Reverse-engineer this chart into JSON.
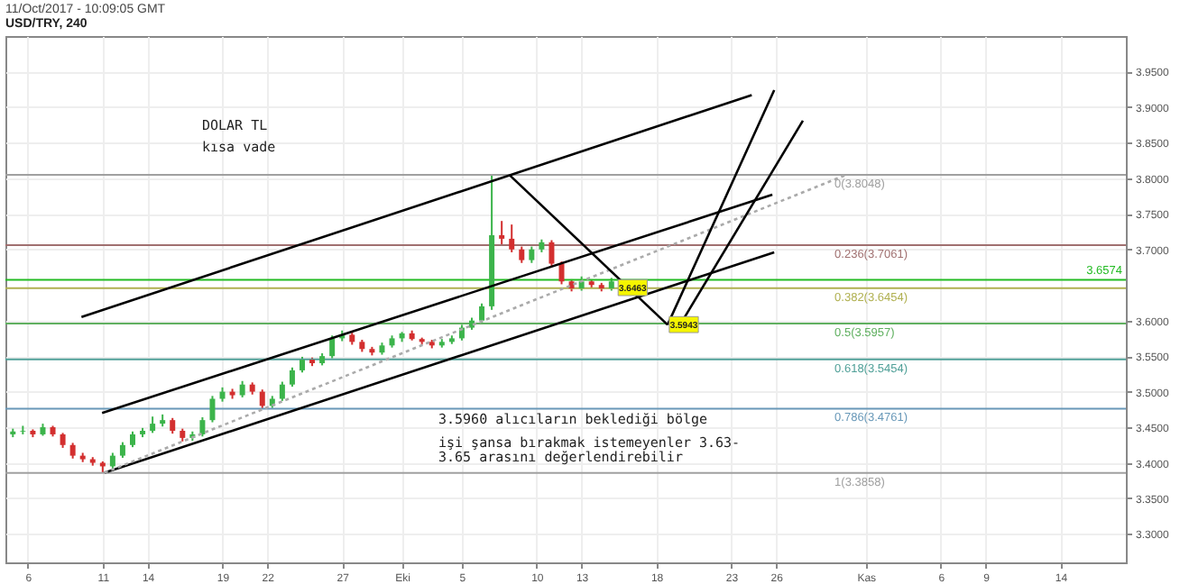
{
  "chart_data": {
    "type": "candlestick",
    "title": "USD/TRY, 240",
    "subtitle": "11/Oct/2017 - 10:09:05 GMT",
    "x": [
      "2017-09-05T00:00",
      "2017-09-05T16:00",
      "2017-09-06T08:00",
      "2017-09-07T00:00",
      "2017-09-07T16:00",
      "2017-09-08T08:00",
      "2017-09-09T00:00",
      "2017-09-09T16:00",
      "2017-09-10T08:00",
      "2017-09-11T00:00",
      "2017-09-11T16:00",
      "2017-09-12T08:00",
      "2017-09-13T00:00",
      "2017-09-13T16:00",
      "2017-09-14T08:00",
      "2017-09-15T00:00",
      "2017-09-15T16:00",
      "2017-09-16T08:00",
      "2017-09-17T00:00",
      "2017-09-17T16:00",
      "2017-09-18T08:00",
      "2017-09-19T00:00",
      "2017-09-19T16:00",
      "2017-09-20T08:00",
      "2017-09-21T00:00",
      "2017-09-21T16:00",
      "2017-09-22T08:00",
      "2017-09-23T00:00",
      "2017-09-23T16:00",
      "2017-09-24T08:00",
      "2017-09-25T00:00",
      "2017-09-25T16:00",
      "2017-09-26T08:00",
      "2017-09-27T00:00",
      "2017-09-27T16:00",
      "2017-09-28T08:00",
      "2017-09-29T00:00",
      "2017-09-29T16:00",
      "2017-09-30T08:00",
      "2017-10-01T00:00",
      "2017-10-01T16:00",
      "2017-10-02T08:00",
      "2017-10-03T00:00",
      "2017-10-03T16:00",
      "2017-10-04T08:00",
      "2017-10-05T00:00",
      "2017-10-05T16:00",
      "2017-10-06T08:00",
      "2017-10-07T00:00",
      "2017-10-07T16:00",
      "2017-10-08T08:00",
      "2017-10-09T00:00",
      "2017-10-09T16:00",
      "2017-10-10T08:00",
      "2017-10-11T00:00",
      "2017-10-11T16:00",
      "2017-10-12T08:00",
      "2017-10-13T00:00",
      "2017-10-13T16:00",
      "2017-10-14T08:00",
      "2017-10-15T00:00"
    ],
    "ohlc": [
      [
        3.44,
        3.448,
        3.436,
        3.444
      ],
      [
        3.444,
        3.452,
        3.44,
        3.445
      ],
      [
        3.445,
        3.447,
        3.436,
        3.44
      ],
      [
        3.44,
        3.455,
        3.438,
        3.45
      ],
      [
        3.45,
        3.452,
        3.437,
        3.44
      ],
      [
        3.44,
        3.442,
        3.421,
        3.425
      ],
      [
        3.425,
        3.428,
        3.406,
        3.41
      ],
      [
        3.41,
        3.414,
        3.401,
        3.405
      ],
      [
        3.405,
        3.408,
        3.396,
        3.4
      ],
      [
        3.4,
        3.402,
        3.386,
        3.395
      ],
      [
        3.395,
        3.414,
        3.392,
        3.41
      ],
      [
        3.41,
        3.429,
        3.407,
        3.425
      ],
      [
        3.425,
        3.444,
        3.422,
        3.44
      ],
      [
        3.44,
        3.449,
        3.436,
        3.445
      ],
      [
        3.445,
        3.465,
        3.442,
        3.455
      ],
      [
        3.455,
        3.468,
        3.451,
        3.46
      ],
      [
        3.46,
        3.463,
        3.441,
        3.445
      ],
      [
        3.445,
        3.448,
        3.43,
        3.435
      ],
      [
        3.435,
        3.444,
        3.431,
        3.44
      ],
      [
        3.44,
        3.464,
        3.437,
        3.46
      ],
      [
        3.46,
        3.494,
        3.457,
        3.49
      ],
      [
        3.49,
        3.506,
        3.486,
        3.5
      ],
      [
        3.5,
        3.504,
        3.49,
        3.495
      ],
      [
        3.495,
        3.515,
        3.492,
        3.51
      ],
      [
        3.51,
        3.513,
        3.496,
        3.5
      ],
      [
        3.5,
        3.503,
        3.476,
        3.48
      ],
      [
        3.48,
        3.494,
        3.477,
        3.49
      ],
      [
        3.49,
        3.514,
        3.487,
        3.51
      ],
      [
        3.51,
        3.534,
        3.507,
        3.53
      ],
      [
        3.53,
        3.549,
        3.527,
        3.545
      ],
      [
        3.545,
        3.548,
        3.536,
        3.54
      ],
      [
        3.54,
        3.554,
        3.537,
        3.55
      ],
      [
        3.55,
        3.579,
        3.547,
        3.575
      ],
      [
        3.575,
        3.586,
        3.571,
        3.58
      ],
      [
        3.58,
        3.583,
        3.566,
        3.57
      ],
      [
        3.57,
        3.573,
        3.556,
        3.56
      ],
      [
        3.56,
        3.563,
        3.551,
        3.555
      ],
      [
        3.555,
        3.569,
        3.552,
        3.565
      ],
      [
        3.565,
        3.579,
        3.562,
        3.575
      ],
      [
        3.575,
        3.584,
        3.57,
        3.582
      ],
      [
        3.582,
        3.586,
        3.572,
        3.574
      ],
      [
        3.574,
        3.576,
        3.566,
        3.57
      ],
      [
        3.57,
        3.573,
        3.561,
        3.565
      ],
      [
        3.565,
        3.574,
        3.562,
        3.57
      ],
      [
        3.57,
        3.579,
        3.567,
        3.575
      ],
      [
        3.575,
        3.594,
        3.572,
        3.59
      ],
      [
        3.59,
        3.604,
        3.587,
        3.6
      ],
      [
        3.6,
        3.624,
        3.597,
        3.62
      ],
      [
        3.62,
        3.805,
        3.615,
        3.72
      ],
      [
        3.72,
        3.74,
        3.705,
        3.715
      ],
      [
        3.715,
        3.735,
        3.696,
        3.7
      ],
      [
        3.7,
        3.704,
        3.681,
        3.685
      ],
      [
        3.685,
        3.704,
        3.681,
        3.7
      ],
      [
        3.7,
        3.714,
        3.696,
        3.71
      ],
      [
        3.71,
        3.713,
        3.676,
        3.68
      ],
      [
        3.68,
        3.683,
        3.651,
        3.655
      ],
      [
        3.655,
        3.658,
        3.641,
        3.645
      ],
      [
        3.645,
        3.662,
        3.642,
        3.655
      ],
      [
        3.655,
        3.658,
        3.646,
        3.65
      ],
      [
        3.65,
        3.653,
        3.641,
        3.645
      ],
      [
        3.645,
        3.66,
        3.642,
        3.655
      ]
    ],
    "series": [
      {
        "type": "line",
        "color": "#000000",
        "x": [
          "2017-09-09T14:00",
          "2017-10-24T09:00"
        ],
        "values": [
          3.605,
          3.917
        ]
      },
      {
        "type": "line",
        "color": "#000000",
        "x": [
          "2017-09-10T23:00",
          "2017-10-25T18:00"
        ],
        "values": [
          3.47,
          3.777
        ]
      },
      {
        "type": "line",
        "color": "#000000",
        "x": [
          "2017-09-11T03:00",
          "2017-10-25T21:00"
        ],
        "values": [
          3.386,
          3.696
        ]
      },
      {
        "type": "line",
        "color": "#aaaaaa",
        "line_style": "dotted",
        "x": [
          "2017-09-11T03:00",
          "2017-10-30T17:00"
        ],
        "values": [
          3.386,
          3.805
        ]
      },
      {
        "type": "line",
        "color": "#000000",
        "x": [
          "2017-10-08T04:00",
          "2017-10-18T18:00"
        ],
        "values": [
          3.805,
          3.594
        ]
      },
      {
        "type": "line",
        "color": "#000000",
        "x": [
          "2017-10-18T18:00",
          "2017-10-25T21:00"
        ],
        "values": [
          3.594,
          3.924
        ]
      },
      {
        "type": "line",
        "color": "#000000",
        "x": [
          "2017-10-19T14:00",
          "2017-10-27T19:00"
        ],
        "values": [
          3.594,
          3.881
        ]
      }
    ],
    "ref_lines": [
      {
        "axis": "y",
        "value": 3.8048,
        "label": "0(3.8048)",
        "color": "#a0a0a0"
      },
      {
        "axis": "y",
        "value": 3.7061,
        "label": "0.236(3.7061)",
        "color": "#a07070"
      },
      {
        "axis": "y",
        "value": 3.6454,
        "label": "0.382(3.6454)",
        "color": "#b0b050"
      },
      {
        "axis": "y",
        "value": 3.5957,
        "label": "0.5(3.5957)",
        "color": "#60b060"
      },
      {
        "axis": "y",
        "value": 3.5454,
        "label": "0.618(3.5454)",
        "color": "#50a098"
      },
      {
        "axis": "y",
        "value": 3.4761,
        "label": "0.786(3.4761)",
        "color": "#6898b8"
      },
      {
        "axis": "y",
        "value": 3.3858,
        "label": "1(3.3858)",
        "color": "#a0a0a0"
      },
      {
        "axis": "y",
        "value": 3.6574,
        "label": "3.6574",
        "color": "#22bb22"
      }
    ],
    "annotations": [
      "DOLAR TL",
      "kısa vade",
      "3.5960 alıcıların beklediği bölge",
      "işi şansa bırakmak istemeyenler 3.63-\n3.65 arasını değerlendirebilir",
      {
        "text": "3.6463",
        "x": "2017-10-16T10:00",
        "y": 3.6463
      },
      {
        "text": "3.5943",
        "x": "2017-10-19T20:00",
        "y": 3.5943
      }
    ],
    "xlim": [
      "2017-09-04T12:00",
      "2017-11-18T09:00"
    ],
    "ylim": [
      3.26,
      4.0
    ],
    "xticks": [
      {
        "value": "2017-09-06",
        "label": "6"
      },
      {
        "value": "2017-09-11",
        "label": "11"
      },
      {
        "value": "2017-09-14",
        "label": "14"
      },
      {
        "value": "2017-09-19",
        "label": "19"
      },
      {
        "value": "2017-09-22",
        "label": "22"
      },
      {
        "value": "2017-09-27",
        "label": "27"
      },
      {
        "value": "2017-10-01",
        "label": "Eki"
      },
      {
        "value": "2017-10-05",
        "label": "5"
      },
      {
        "value": "2017-10-10",
        "label": "10"
      },
      {
        "value": "2017-10-13",
        "label": "13"
      },
      {
        "value": "2017-10-18",
        "label": "18"
      },
      {
        "value": "2017-10-23",
        "label": "23"
      },
      {
        "value": "2017-10-26",
        "label": "26"
      },
      {
        "value": "2017-11-01",
        "label": "Kas"
      },
      {
        "value": "2017-11-06",
        "label": "6"
      },
      {
        "value": "2017-11-09",
        "label": "9"
      },
      {
        "value": "2017-11-14",
        "label": "14"
      }
    ],
    "yticks": [
      {
        "value": 3.3,
        "label": "3.3000"
      },
      {
        "value": 3.35,
        "label": "3.3500"
      },
      {
        "value": 3.4,
        "label": "3.4000"
      },
      {
        "value": 3.45,
        "label": "3.4500"
      },
      {
        "value": 3.5,
        "label": "3.5000"
      },
      {
        "value": 3.55,
        "label": "3.5500"
      },
      {
        "value": 3.6,
        "label": "3.6000"
      },
      {
        "value": 3.7,
        "label": "3.7000"
      },
      {
        "value": 3.75,
        "label": "3.7500"
      },
      {
        "value": 3.8,
        "label": "3.8000"
      },
      {
        "value": 3.85,
        "label": "3.8500"
      },
      {
        "value": 3.9,
        "label": "3.9000"
      },
      {
        "value": 3.95,
        "label": "3.9500"
      }
    ],
    "grid": true
  }
}
